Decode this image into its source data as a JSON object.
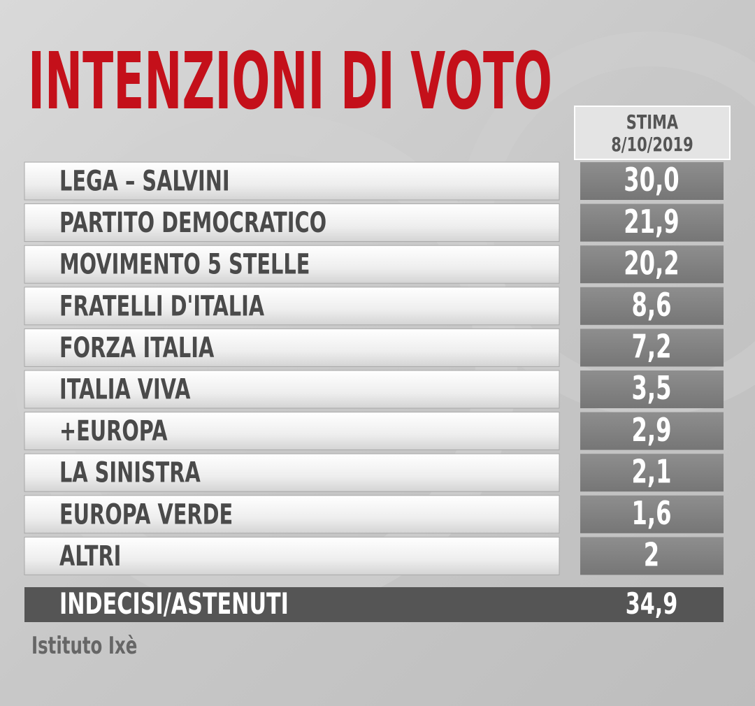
{
  "header": {
    "title": "INTENZIONI DI VOTO"
  },
  "table": {
    "column_header": [
      "STIMA",
      "8/10/2019"
    ],
    "rows": [
      [
        "LEGA – SALVINI",
        "30,0"
      ],
      [
        "PARTITO DEMOCRATICO",
        "21,9"
      ],
      [
        "MOVIMENTO 5 STELLE",
        "20,2"
      ],
      [
        "FRATELLI D'ITALIA",
        "8,6"
      ],
      [
        "FORZA ITALIA",
        "7,2"
      ],
      [
        "ITALIA VIVA",
        "3,5"
      ],
      [
        "+EUROPA",
        "2,9"
      ],
      [
        "LA SINISTRA",
        "2,1"
      ],
      [
        "EUROPA VERDE",
        "1,6"
      ],
      [
        "ALTRI",
        "2"
      ]
    ],
    "total_row": [
      "INDECISI/ASTENUTI",
      "34,9"
    ]
  },
  "source": "Istituto Ixè"
}
